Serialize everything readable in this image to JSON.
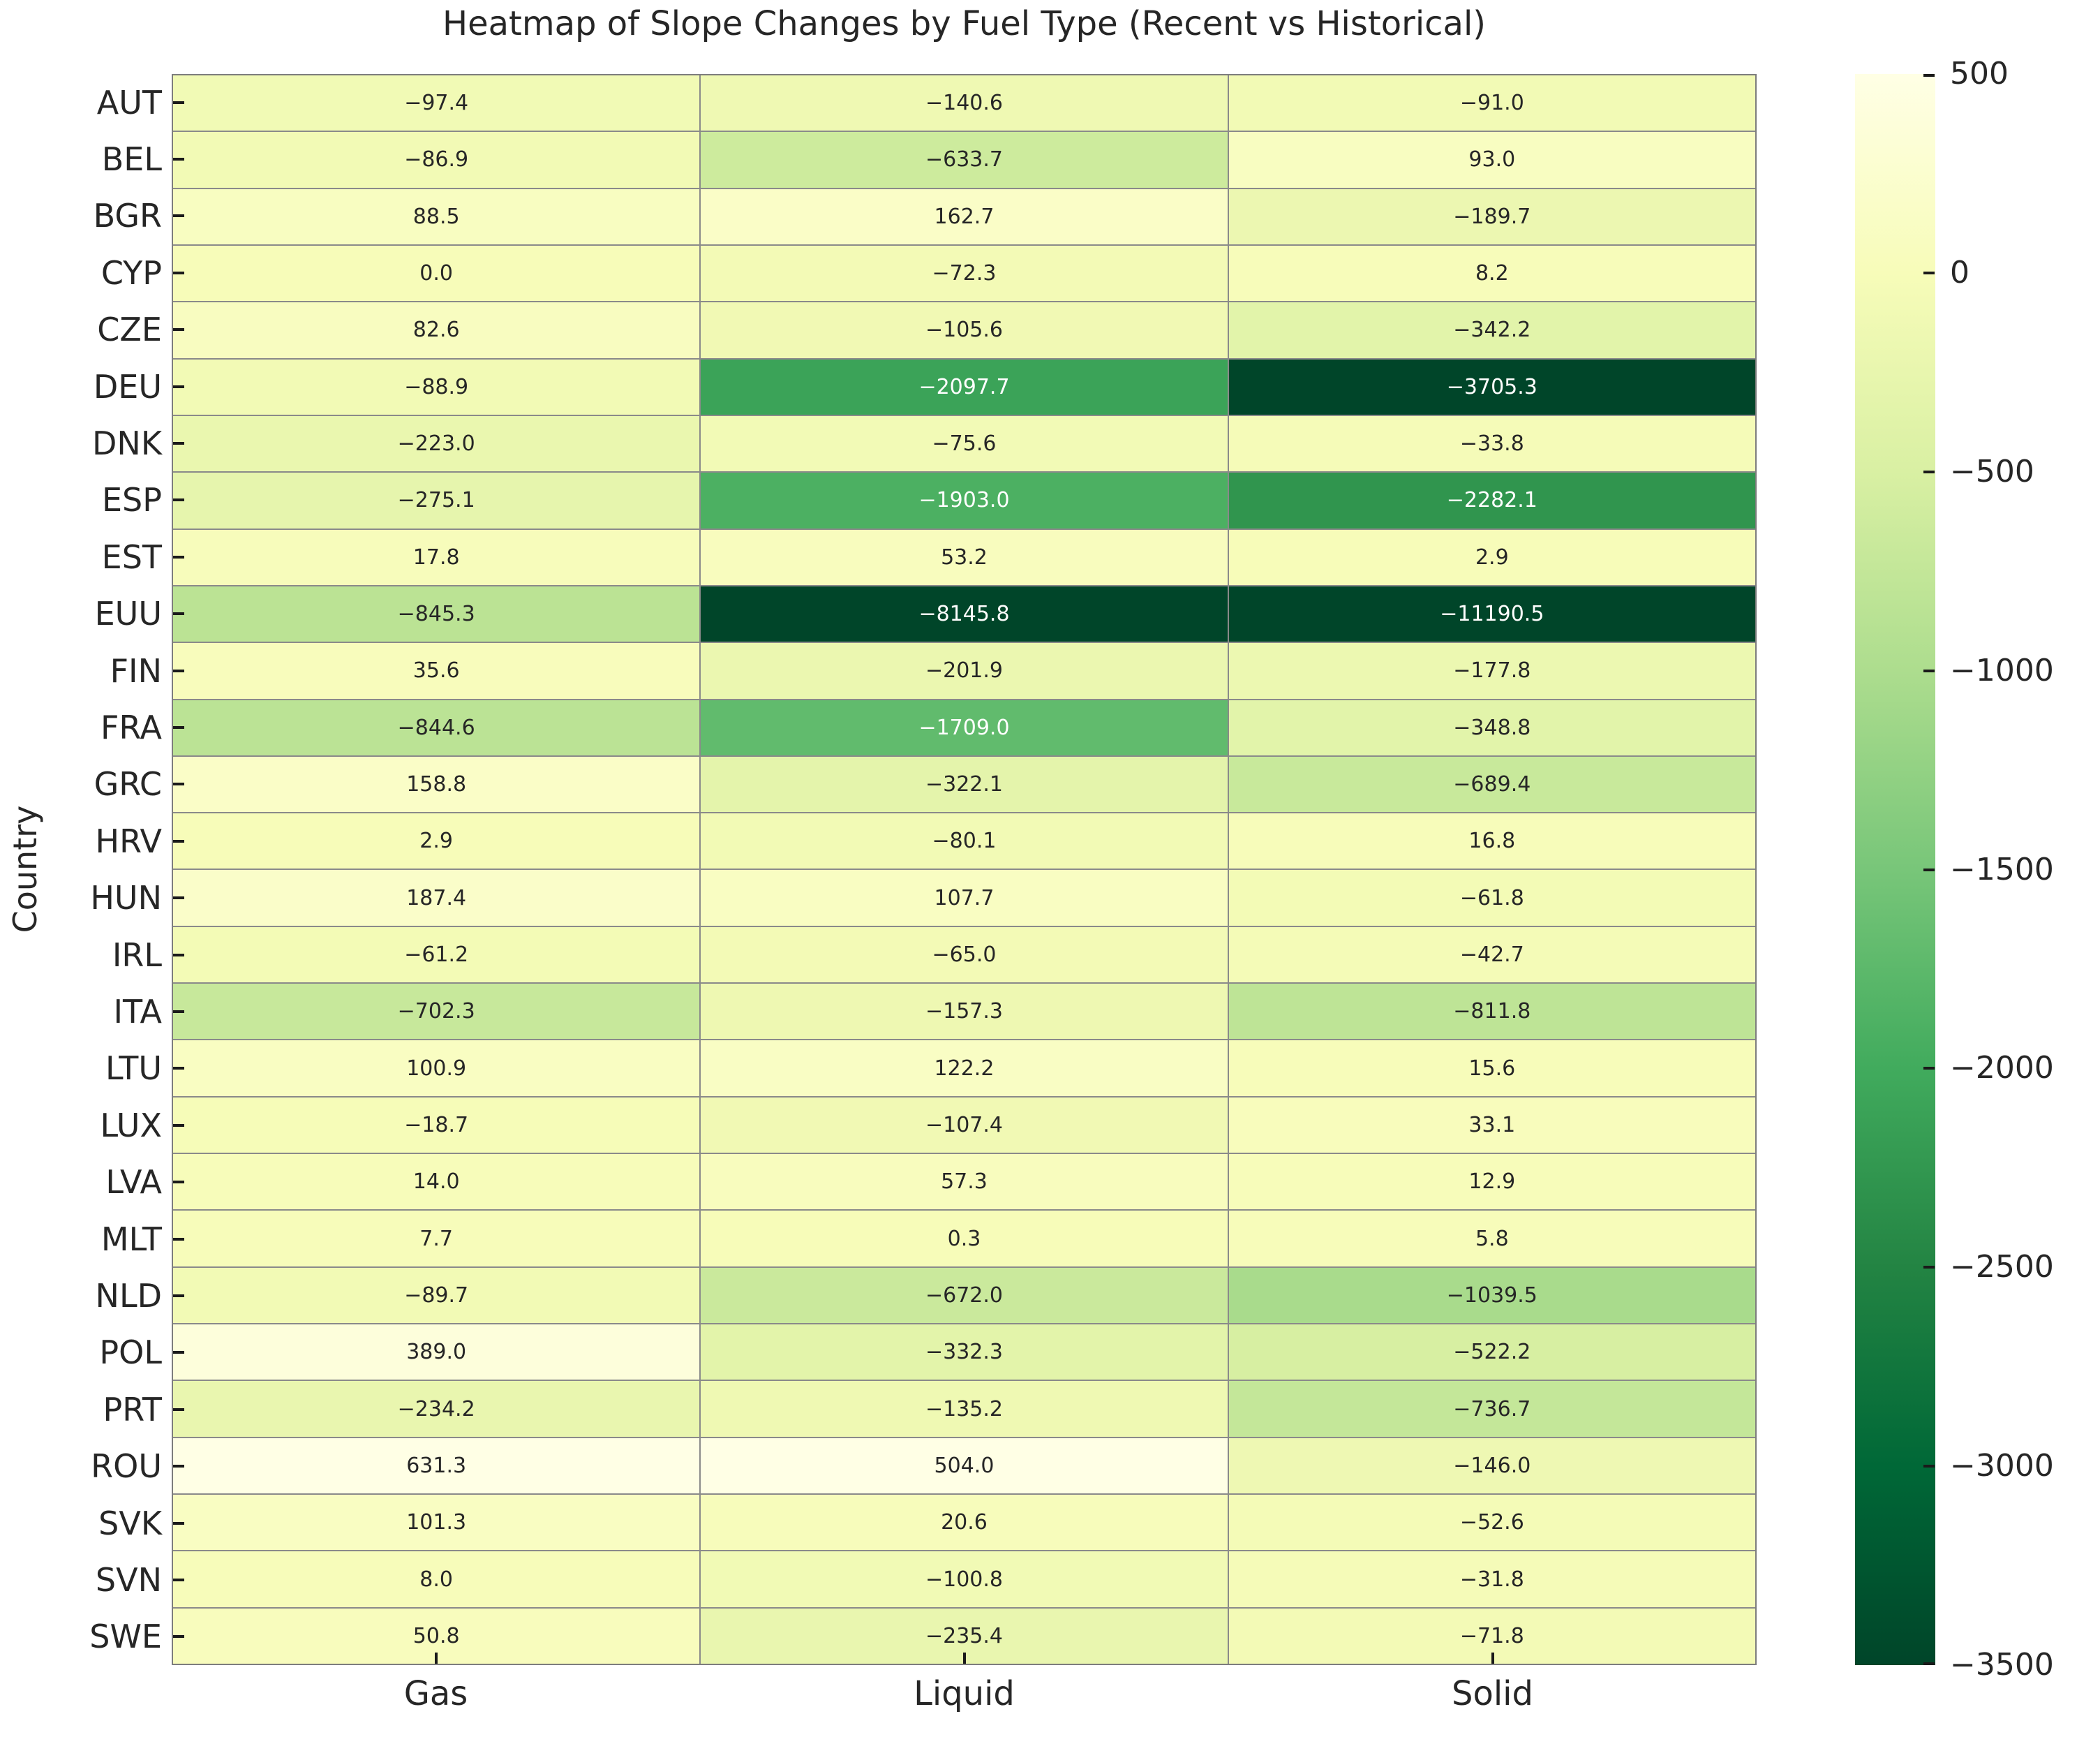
{
  "title": "Heatmap of Slope Changes by Fuel Type (Recent vs Historical)",
  "ylabel": "Country",
  "chart_data": {
    "type": "heatmap",
    "columns": [
      "Gas",
      "Liquid",
      "Solid"
    ],
    "rows": [
      "AUT",
      "BEL",
      "BGR",
      "CYP",
      "CZE",
      "DEU",
      "DNK",
      "ESP",
      "EST",
      "EUU",
      "FIN",
      "FRA",
      "GRC",
      "HRV",
      "HUN",
      "IRL",
      "ITA",
      "LTU",
      "LUX",
      "LVA",
      "MLT",
      "NLD",
      "POL",
      "PRT",
      "ROU",
      "SVK",
      "SVN",
      "SWE"
    ],
    "values": [
      [
        -97.4,
        -140.6,
        -91.0
      ],
      [
        -86.9,
        -633.7,
        93.0
      ],
      [
        88.5,
        162.7,
        -189.7
      ],
      [
        0.0,
        -72.3,
        8.2
      ],
      [
        82.6,
        -105.6,
        -342.2
      ],
      [
        -88.9,
        -2097.7,
        -3705.3
      ],
      [
        -223.0,
        -75.6,
        -33.8
      ],
      [
        -275.1,
        -1903.0,
        -2282.1
      ],
      [
        17.8,
        53.2,
        2.9
      ],
      [
        -845.3,
        -8145.8,
        -11190.5
      ],
      [
        35.6,
        -201.9,
        -177.8
      ],
      [
        -844.6,
        -1709.0,
        -348.8
      ],
      [
        158.8,
        -322.1,
        -689.4
      ],
      [
        2.9,
        -80.1,
        16.8
      ],
      [
        187.4,
        107.7,
        -61.8
      ],
      [
        -61.2,
        -65.0,
        -42.7
      ],
      [
        -702.3,
        -157.3,
        -811.8
      ],
      [
        100.9,
        122.2,
        15.6
      ],
      [
        -18.7,
        -107.4,
        33.1
      ],
      [
        14.0,
        57.3,
        12.9
      ],
      [
        7.7,
        0.3,
        5.8
      ],
      [
        -89.7,
        -672.0,
        -1039.5
      ],
      [
        389.0,
        -332.3,
        -522.2
      ],
      [
        -234.2,
        -135.2,
        -736.7
      ],
      [
        631.3,
        504.0,
        -146.0
      ],
      [
        101.3,
        20.6,
        -52.6
      ],
      [
        8.0,
        -100.8,
        -31.8
      ],
      [
        50.8,
        -235.4,
        -71.8
      ]
    ],
    "value_format": "1 decimal, unicode minus",
    "colorbar": {
      "vmin": -3500,
      "vmax": 500,
      "ticks": [
        500,
        0,
        -500,
        -1000,
        -1500,
        -2000,
        -2500,
        -3000,
        -3500
      ],
      "colormap": "YlGn reversed (light yellow = high, dark green = low)",
      "colormap_stops": [
        "#ffffe5",
        "#f7fcb9",
        "#d9f0a3",
        "#addd8e",
        "#78c679",
        "#41ab5d",
        "#238443",
        "#006837",
        "#004529"
      ]
    },
    "layout_hints": {
      "legend_position": "right colorbar",
      "grid": "thin gray cell borders",
      "annotations": "each cell labeled with its value"
    },
    "text_colors": {
      "dark_text": "#262626",
      "light_text": "#ffffff"
    }
  }
}
